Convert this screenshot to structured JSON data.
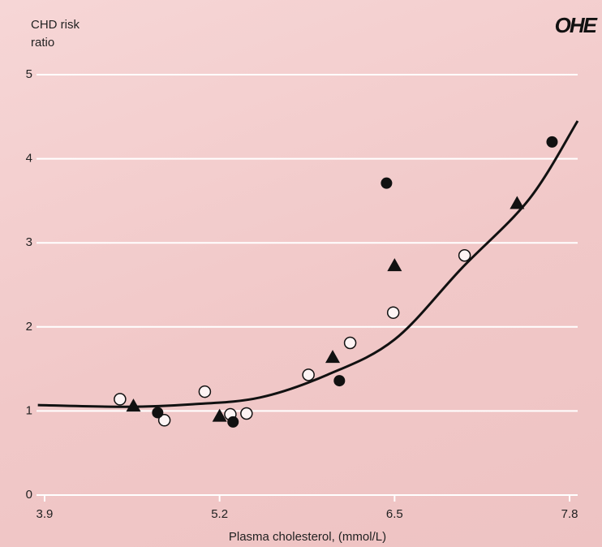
{
  "chart_data": {
    "type": "scatter",
    "logo": "OHE",
    "y_label": "CHD risk ratio",
    "x_label": "Plasma cholesterol, (mmol/L)",
    "xlim": [
      3.84,
      7.86
    ],
    "ylim": [
      0,
      5
    ],
    "xticks": [
      3.9,
      5.2,
      6.5,
      7.8
    ],
    "yticks": [
      0,
      1,
      2,
      3,
      4,
      5
    ],
    "grid": true,
    "series": [
      {
        "marker": "circle-open",
        "color": "#111111",
        "x": [
          4.46,
          4.79,
          5.09,
          5.28,
          5.4,
          5.86,
          6.17,
          6.49,
          7.02
        ],
        "values": [
          1.14,
          0.89,
          1.23,
          0.96,
          0.97,
          1.43,
          1.81,
          2.17,
          2.85
        ]
      },
      {
        "marker": "circle",
        "color": "#111111",
        "x": [
          4.74,
          5.3,
          6.09,
          6.44,
          7.67
        ],
        "values": [
          0.98,
          0.87,
          1.36,
          3.71,
          4.2
        ]
      },
      {
        "marker": "triangle",
        "color": "#111111",
        "x": [
          4.56,
          5.2,
          6.04,
          6.5,
          7.41
        ],
        "values": [
          1.06,
          0.94,
          1.64,
          2.73,
          3.47
        ]
      },
      {
        "marker": "line",
        "color": "#111111",
        "x": [
          3.85,
          4.5,
          5.0,
          5.5,
          6.0,
          6.5,
          7.0,
          7.5,
          7.86
        ],
        "values": [
          1.07,
          1.05,
          1.08,
          1.16,
          1.43,
          1.85,
          2.7,
          3.52,
          4.45
        ]
      }
    ]
  }
}
